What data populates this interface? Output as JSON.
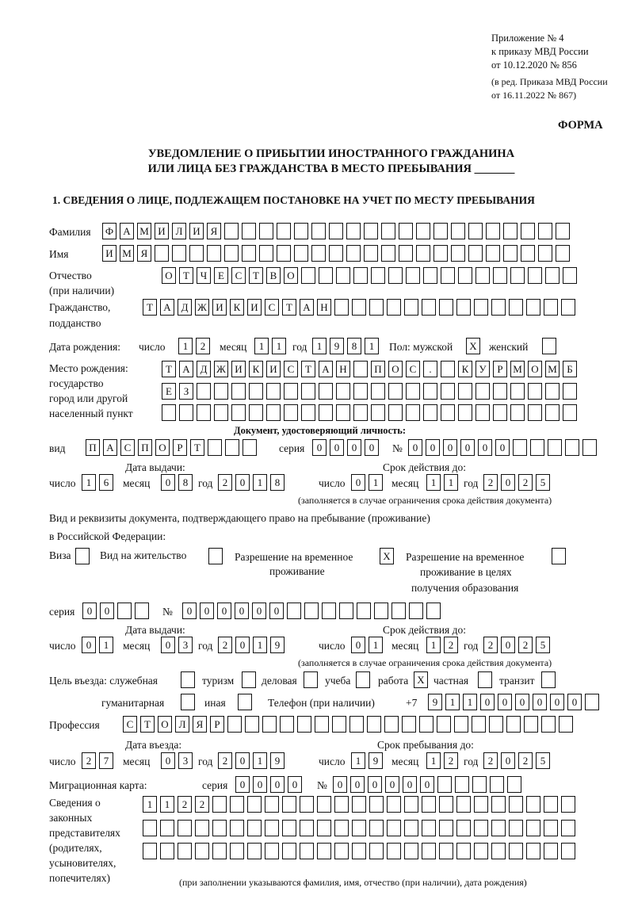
{
  "header": {
    "appendix": "Приложение № 4",
    "order": "к приказу МВД России",
    "order_date": "от 10.12.2020 № 856",
    "revision1": "(в ред. Приказа МВД России",
    "revision2": "от 16.11.2022 № 867)",
    "form_label": "ФОРМА",
    "title1": "УВЕДОМЛЕНИЕ О ПРИБЫТИИ ИНОСТРАННОГО ГРАЖДАНИНА",
    "title2": "ИЛИ ЛИЦА БЕЗ ГРАЖДАНСТВА В МЕСТО ПРЕБЫВАНИЯ _______",
    "section1": "1. СВЕДЕНИЯ О ЛИЦЕ, ПОДЛЕЖАЩЕМ ПОСТАНОВКЕ НА УЧЕТ ПО МЕСТУ ПРЕБЫВАНИЯ"
  },
  "labels": {
    "surname": "Фамилия",
    "name": "Имя",
    "patronymic1": "Отчество",
    "patronymic2": "(при наличии)",
    "citizenship1": "Гражданство,",
    "citizenship2": "подданство",
    "birth_date": "Дата рождения:",
    "day": "число",
    "month": "месяц",
    "year": "год",
    "sex": "Пол: мужской",
    "female": "женский",
    "birthplace1": "Место рождения:",
    "birthplace2": "государство",
    "birthplace3": "город или другой",
    "birthplace4": "населенный пункт",
    "id_doc": "Документ, удостоверяющий личность:",
    "kind": "вид",
    "series": "серия",
    "number": "№",
    "issue_date": "Дата выдачи:",
    "valid_until": "Срок действия до:",
    "validity_note": "(заполняется в случае ограничения срока действия документа)",
    "right_doc1": "Вид и реквизиты документа, подтверждающего право на пребывание (проживание)",
    "right_doc2": "в Российской Федерации:",
    "visa": "Виза",
    "residence": "Вид на жительство",
    "trp1": "Разрешение на временное",
    "trp2": "проживание",
    "trp_edu1": "Разрешение на временное",
    "trp_edu2": "проживание в целях",
    "trp_edu3": "получения образования",
    "purpose": "Цель въезда: служебная",
    "tourism": "туризм",
    "business": "деловая",
    "study": "учеба",
    "work": "работа",
    "private": "частная",
    "transit": "транзит",
    "humanitarian": "гуманитарная",
    "other": "иная",
    "phone": "Телефон (при наличии)",
    "phone_prefix": "+7",
    "profession": "Профессия",
    "entry_date": "Дата въезда:",
    "stay_until": "Срок пребывания до:",
    "migration_card": "Миграционная карта:",
    "reps1": "Сведения о",
    "reps2": "законных",
    "reps3": "представителях",
    "reps4": "(родителях,",
    "reps5": "усыновителях,",
    "reps6": "попечителях)",
    "reps_note": "(при заполнении указываются фамилия, имя, отчество (при наличии), дата рождения)"
  },
  "person": {
    "surname": "ФАМИЛИЯ",
    "name": "ИМЯ",
    "patronymic": "ОТЧЕСТВО",
    "citizenship": "ТАДЖИКИСТАН",
    "birth": {
      "day": "12",
      "month": "11",
      "year": "1981"
    },
    "sex_male": "X",
    "sex_female": "",
    "birthplace": [
      "ТАДЖИКИСТАН ПОС. КУРМОМБ",
      "ЕЗ",
      ""
    ]
  },
  "id_document": {
    "kind": "ПАСПОРТ",
    "series": "0000",
    "number": "000000",
    "issued": {
      "day": "16",
      "month": "08",
      "year": "2018"
    },
    "valid": {
      "day": "01",
      "month": "11",
      "year": "2025"
    }
  },
  "right_document": {
    "visa": "",
    "residence_permit": "",
    "temporary_residence": "X",
    "temporary_residence_edu": "",
    "series": "00",
    "number": "000000",
    "issued": {
      "day": "01",
      "month": "03",
      "year": "2019"
    },
    "valid": {
      "day": "01",
      "month": "12",
      "year": "2025"
    }
  },
  "purpose": {
    "official": "",
    "tourism": "",
    "business": "",
    "study": "",
    "work": "X",
    "private": "",
    "transit": "",
    "humanitarian": "",
    "other": ""
  },
  "phone": "911000000",
  "profession": "СТОЛЯР",
  "entry": {
    "day": "27",
    "month": "03",
    "year": "2019"
  },
  "stay_until": {
    "day": "19",
    "month": "12",
    "year": "2025"
  },
  "migration_card": {
    "series": "0000",
    "number": "000000"
  },
  "legal_reps": [
    "1122",
    "",
    ""
  ]
}
